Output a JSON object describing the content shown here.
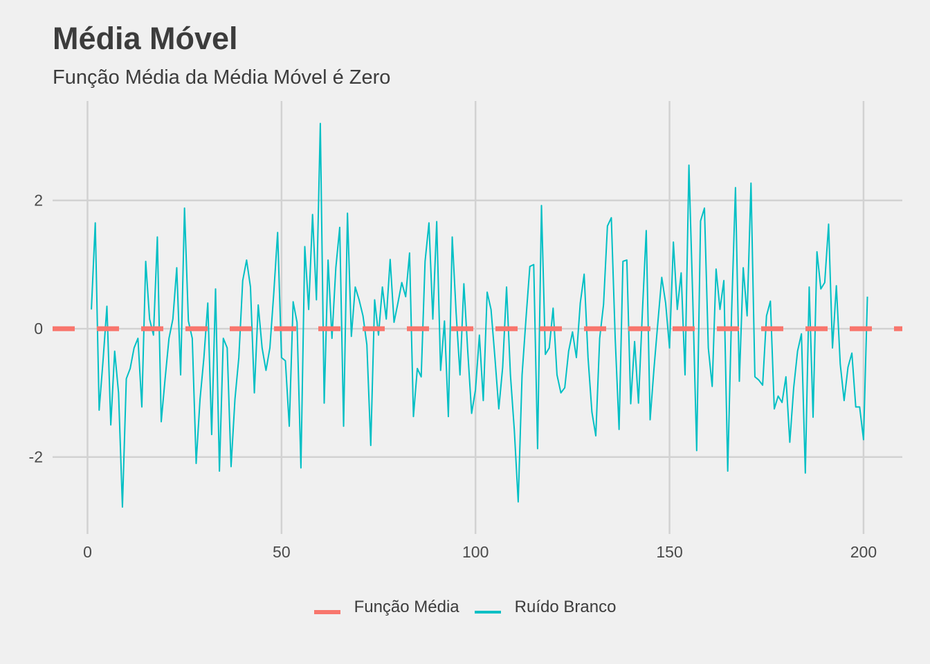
{
  "chart_data": {
    "type": "line",
    "title": "Média Móvel",
    "subtitle": "Função Média da Média Móvel é Zero",
    "xlabel": "",
    "ylabel": "",
    "xlim": [
      -9,
      210
    ],
    "ylim": [
      -3.2,
      3.55
    ],
    "x_ticks": [
      0,
      50,
      100,
      150,
      200
    ],
    "y_ticks": [
      -2,
      0,
      2
    ],
    "x_tick_labels": [
      "0",
      "50",
      "100",
      "150",
      "200"
    ],
    "y_tick_labels": [
      "-2",
      "0",
      "2"
    ],
    "grid": true,
    "legend_position": "bottom",
    "series": [
      {
        "name": "Função Média",
        "type": "hline",
        "style": "dashed",
        "color": "#f8766d",
        "x": [
          -9,
          210
        ],
        "values": [
          0,
          0
        ]
      },
      {
        "name": "Ruído Branco",
        "type": "line",
        "color": "#00bfc4",
        "x_start": 1,
        "values": [
          0.3,
          1.65,
          -1.27,
          -0.5,
          0.35,
          -1.5,
          -0.35,
          -1.0,
          -2.78,
          -0.78,
          -0.62,
          -0.3,
          -0.15,
          -1.22,
          1.05,
          0.15,
          -0.1,
          1.43,
          -1.45,
          -0.78,
          -0.15,
          0.15,
          0.95,
          -0.72,
          1.88,
          0.12,
          -0.15,
          -2.1,
          -1.1,
          -0.45,
          0.4,
          -1.65,
          0.62,
          -2.22,
          -0.15,
          -0.3,
          -2.15,
          -1.1,
          -0.45,
          0.75,
          1.07,
          0.65,
          -1.0,
          0.37,
          -0.3,
          -0.65,
          -0.3,
          0.55,
          1.5,
          -0.45,
          -0.5,
          -1.52,
          0.42,
          0.1,
          -2.17,
          1.28,
          0.3,
          1.78,
          0.45,
          3.2,
          -1.16,
          1.07,
          -0.15,
          0.95,
          1.58,
          -1.52,
          1.8,
          -0.12,
          0.65,
          0.45,
          0.2,
          -0.25,
          -1.82,
          0.45,
          -0.1,
          0.65,
          0.15,
          1.08,
          0.1,
          0.4,
          0.72,
          0.5,
          1.18,
          -1.37,
          -0.62,
          -0.75,
          1.05,
          1.65,
          0.15,
          1.67,
          -0.65,
          0.12,
          -1.37,
          1.43,
          0.25,
          -0.72,
          0.7,
          -0.35,
          -1.32,
          -0.95,
          -0.1,
          -1.12,
          0.57,
          0.3,
          -0.45,
          -1.25,
          -0.6,
          0.65,
          -0.72,
          -1.58,
          -2.7,
          -0.72,
          0.15,
          0.97,
          1.0,
          -1.87,
          1.92,
          -0.4,
          -0.3,
          0.32,
          -0.72,
          -1.0,
          -0.92,
          -0.35,
          -0.05,
          -0.45,
          0.4,
          0.85,
          -0.45,
          -1.3,
          -1.67,
          -0.15,
          0.38,
          1.6,
          1.73,
          -0.15,
          -1.57,
          1.05,
          1.07,
          -1.17,
          -0.2,
          -1.16,
          0.25,
          1.53,
          -1.42,
          -0.62,
          0.1,
          0.8,
          0.4,
          -0.3,
          1.35,
          0.3,
          0.87,
          -0.72,
          2.55,
          0.45,
          -1.9,
          1.68,
          1.88,
          -0.3,
          -0.9,
          0.93,
          0.3,
          0.75,
          -2.22,
          0.25,
          2.2,
          -0.82,
          0.95,
          0.2,
          2.27,
          -0.75,
          -0.8,
          -0.88,
          0.2,
          0.43,
          -1.25,
          -1.05,
          -1.15,
          -0.75,
          -1.77,
          -0.92,
          -0.35,
          -0.08,
          -2.25,
          0.65,
          -1.38,
          1.2,
          0.62,
          0.72,
          1.63,
          -0.3,
          0.67,
          -0.55,
          -1.12,
          -0.6,
          -0.38,
          -1.22,
          -1.22,
          -1.73,
          0.5
        ]
      }
    ]
  }
}
